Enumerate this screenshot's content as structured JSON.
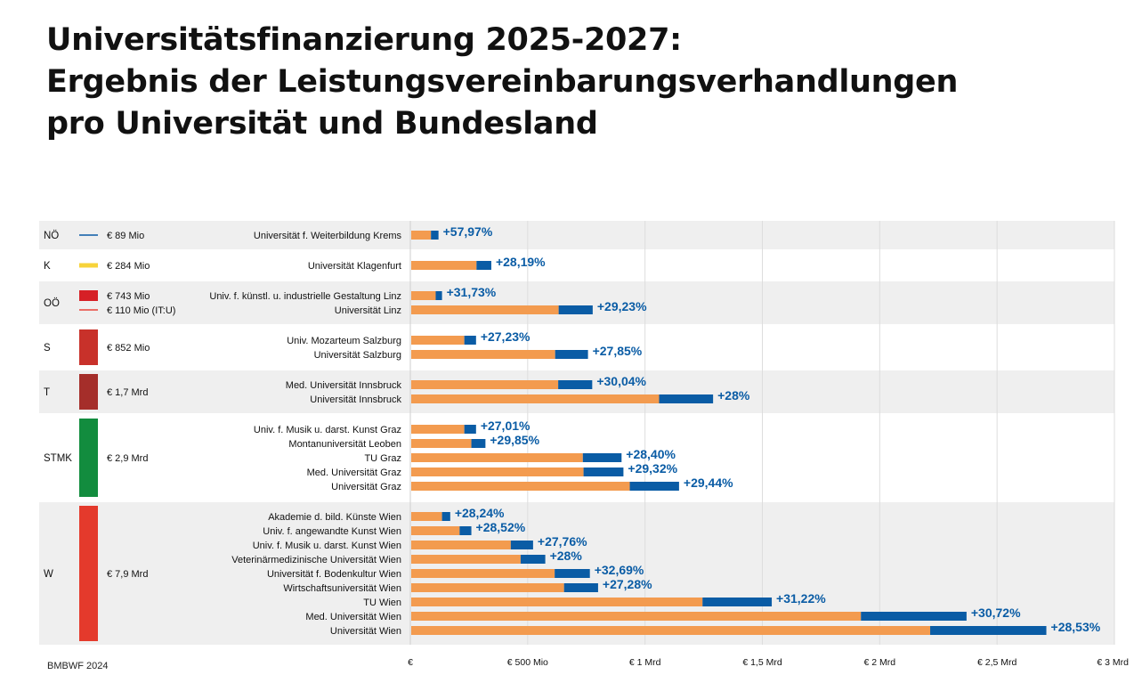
{
  "header": {
    "title_lines": [
      "Universitätsfinanzierung 2025-2027:",
      "Ergebnis der Leistungsvereinbarungsverhandlungen",
      "pro Universität und Bundesland"
    ]
  },
  "footer": {
    "source": "BMBWF 2024"
  },
  "colors": {
    "base": "#F39B4F",
    "increase": "#0A5CA5",
    "pct_text": "#0A5CA5",
    "band_shade": "#EFEFEF",
    "grid": "#DDDDDD"
  },
  "chart_data": {
    "type": "bar",
    "orientation": "horizontal-stacked",
    "title": "Universitätsfinanzierung 2025-2027: Ergebnis der Leistungsvereinbarungsverhandlungen pro Universität und Bundesland",
    "series_meaning": [
      "base (orange)",
      "increase (blue)"
    ],
    "xlim": [
      0,
      3000
    ],
    "x_unit": "Mio €",
    "x_ticks": [
      {
        "value": 0,
        "label": "€"
      },
      {
        "value": 500,
        "label": "€ 500 Mio"
      },
      {
        "value": 1000,
        "label": "€ 1 Mrd"
      },
      {
        "value": 1500,
        "label": "€ 1,5 Mrd"
      },
      {
        "value": 2000,
        "label": "€ 2 Mrd"
      },
      {
        "value": 2500,
        "label": "€ 2,5 Mrd"
      },
      {
        "value": 3000,
        "label": "€ 3 Mrd"
      }
    ],
    "states": [
      {
        "abbr": "NÖ",
        "shaded": true,
        "legend": [
          {
            "marker": "line",
            "color": "#0A5CA5",
            "label": "€ 89 Mio"
          }
        ],
        "universities": [
          {
            "name": "Universität f. Weiterbildung Krems",
            "base": 88,
            "increase": 32,
            "pct": "+57,97%"
          }
        ]
      },
      {
        "abbr": "K",
        "shaded": false,
        "legend": [
          {
            "marker": "line-thick",
            "color": "#F7D33A",
            "label": "€ 284 Mio"
          }
        ],
        "universities": [
          {
            "name": "Universität Klagenfurt",
            "base": 282,
            "increase": 63,
            "pct": "+28,19%"
          }
        ]
      },
      {
        "abbr": "OÖ",
        "shaded": true,
        "legend": [
          {
            "marker": "square",
            "color": "#D62026",
            "label": "€ 743 Mio"
          },
          {
            "marker": "line",
            "color": "#E8453C",
            "label": "€ 110 Mio (IT:U)"
          }
        ],
        "universities": [
          {
            "name": "Univ. f. künstl. u. industrielle Gestaltung Linz",
            "base": 108,
            "increase": 27,
            "pct": "+31,73%"
          },
          {
            "name": "Universität Linz",
            "base": 632,
            "increase": 145,
            "pct": "+29,23%"
          }
        ]
      },
      {
        "abbr": "S",
        "shaded": false,
        "legend": [
          {
            "marker": "square",
            "color": "#C8312A",
            "label": "€ 852 Mio"
          }
        ],
        "universities": [
          {
            "name": "Univ. Mozarteum Salzburg",
            "base": 230,
            "increase": 50,
            "pct": "+27,23%"
          },
          {
            "name": "Universität Salzburg",
            "base": 617,
            "increase": 140,
            "pct": "+27,85%"
          }
        ]
      },
      {
        "abbr": "T",
        "shaded": true,
        "legend": [
          {
            "marker": "square",
            "color": "#A52E2A",
            "label": "€ 1,7 Mrd"
          }
        ],
        "universities": [
          {
            "name": "Med. Universität Innsbruck",
            "base": 630,
            "increase": 145,
            "pct": "+30,04%"
          },
          {
            "name": "Universität Innsbruck",
            "base": 1060,
            "increase": 230,
            "pct": "+28%"
          }
        ]
      },
      {
        "abbr": "STMK",
        "shaded": false,
        "legend": [
          {
            "marker": "square",
            "color": "#128C3E",
            "label": "€ 2,9 Mrd"
          }
        ],
        "universities": [
          {
            "name": "Univ. f. Musik u. darst. Kunst Graz",
            "base": 230,
            "increase": 50,
            "pct": "+27,01%"
          },
          {
            "name": "Montanuniversität Leoben",
            "base": 260,
            "increase": 60,
            "pct": "+29,85%"
          },
          {
            "name": "TU Graz",
            "base": 735,
            "increase": 165,
            "pct": "+28,40%"
          },
          {
            "name": "Med. Universität Graz",
            "base": 738,
            "increase": 170,
            "pct": "+29,32%"
          },
          {
            "name": "Universität Graz",
            "base": 935,
            "increase": 210,
            "pct": "+29,44%"
          }
        ]
      },
      {
        "abbr": "W",
        "shaded": true,
        "legend": [
          {
            "marker": "square",
            "color": "#E43A2C",
            "label": "€ 7,9 Mrd"
          }
        ],
        "universities": [
          {
            "name": "Akademie d. bild. Künste Wien",
            "base": 135,
            "increase": 35,
            "pct": "+28,24%"
          },
          {
            "name": "Univ. f. angewandte Kunst Wien",
            "base": 210,
            "increase": 50,
            "pct": "+28,52%"
          },
          {
            "name": "Univ. f. Musik u. darst. Kunst Wien",
            "base": 428,
            "increase": 95,
            "pct": "+27,76%"
          },
          {
            "name": "Veterinärmedizinische Universität Wien",
            "base": 470,
            "increase": 105,
            "pct": "+28%"
          },
          {
            "name": "Universität f. Bodenkultur Wien",
            "base": 615,
            "increase": 150,
            "pct": "+32,69%"
          },
          {
            "name": "Wirtschaftsuniversität Wien",
            "base": 655,
            "increase": 145,
            "pct": "+27,28%"
          },
          {
            "name": "TU Wien",
            "base": 1245,
            "increase": 295,
            "pct": "+31,22%"
          },
          {
            "name": "Med. Universität Wien",
            "base": 1920,
            "increase": 450,
            "pct": "+30,72%"
          },
          {
            "name": "Universität Wien",
            "base": 2215,
            "increase": 495,
            "pct": "+28,53%"
          }
        ]
      }
    ]
  }
}
